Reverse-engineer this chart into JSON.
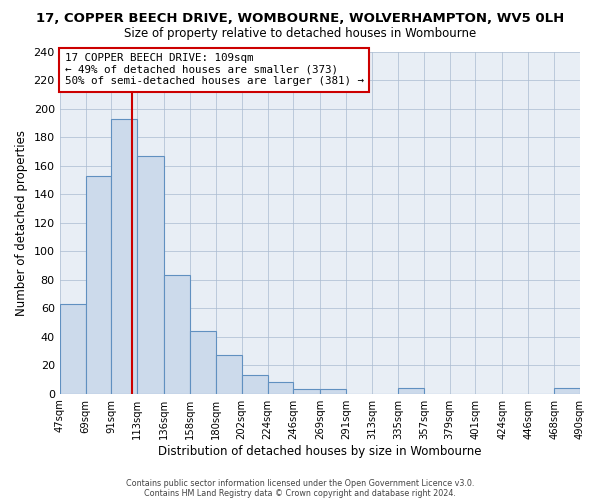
{
  "title": "17, COPPER BEECH DRIVE, WOMBOURNE, WOLVERHAMPTON, WV5 0LH",
  "subtitle": "Size of property relative to detached houses in Wombourne",
  "xlabel": "Distribution of detached houses by size in Wombourne",
  "ylabel": "Number of detached properties",
  "bin_edges": [
    47,
    69,
    91,
    113,
    136,
    158,
    180,
    202,
    224,
    246,
    269,
    291,
    313,
    335,
    357,
    379,
    401,
    424,
    446,
    468,
    490
  ],
  "bin_counts": [
    63,
    153,
    193,
    167,
    83,
    44,
    27,
    13,
    8,
    3,
    3,
    0,
    0,
    4,
    0,
    0,
    0,
    0,
    0,
    4
  ],
  "tick_labels": [
    "47sqm",
    "69sqm",
    "91sqm",
    "113sqm",
    "136sqm",
    "158sqm",
    "180sqm",
    "202sqm",
    "224sqm",
    "246sqm",
    "269sqm",
    "291sqm",
    "313sqm",
    "335sqm",
    "357sqm",
    "379sqm",
    "401sqm",
    "424sqm",
    "446sqm",
    "468sqm",
    "490sqm"
  ],
  "bar_color": "#ccdaeb",
  "bar_edge_color": "#6090c0",
  "bar_edge_width": 0.8,
  "vline_x": 109,
  "vline_color": "#cc0000",
  "ylim": [
    0,
    240
  ],
  "yticks": [
    0,
    20,
    40,
    60,
    80,
    100,
    120,
    140,
    160,
    180,
    200,
    220,
    240
  ],
  "annotation_title": "17 COPPER BEECH DRIVE: 109sqm",
  "annotation_line1": "← 49% of detached houses are smaller (373)",
  "annotation_line2": "50% of semi-detached houses are larger (381) →",
  "footer1": "Contains HM Land Registry data © Crown copyright and database right 2024.",
  "footer2": "Contains public sector information licensed under the Open Government Licence v3.0.",
  "background_color": "#ffffff",
  "plot_bg_color": "#e8eef5",
  "grid_color": "#aabbd0",
  "title_fontsize": 9.5,
  "subtitle_fontsize": 8.5
}
